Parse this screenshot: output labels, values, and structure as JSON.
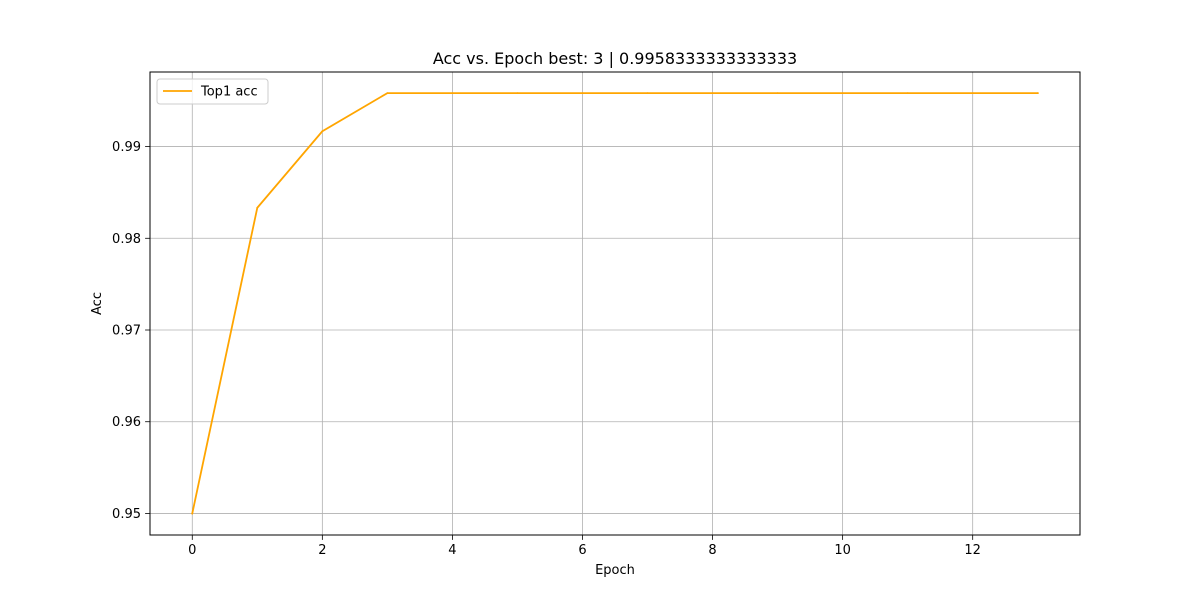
{
  "chart_data": {
    "type": "line",
    "title": "Acc vs. Epoch best: 3 | 0.9958333333333333",
    "xlabel": "Epoch",
    "ylabel": "Acc",
    "xlim": [
      -0.65,
      13.65
    ],
    "ylim": [
      0.94765,
      0.99813
    ],
    "xticks": [
      0,
      2,
      4,
      6,
      8,
      10,
      12
    ],
    "xtick_labels": [
      "0",
      "2",
      "4",
      "6",
      "8",
      "10",
      "12"
    ],
    "yticks": [
      0.95,
      0.96,
      0.97,
      0.98,
      0.99
    ],
    "ytick_labels": [
      "0.95",
      "0.96",
      "0.97",
      "0.98",
      "0.99"
    ],
    "grid": true,
    "legend_position": "top-left",
    "series": [
      {
        "name": "Top1 acc",
        "color": "#ffa500",
        "x": [
          0,
          1,
          2,
          3,
          4,
          5,
          6,
          7,
          8,
          9,
          10,
          11,
          12,
          13
        ],
        "y": [
          0.95,
          0.98333,
          0.99167,
          0.99583,
          0.99583,
          0.99583,
          0.99583,
          0.99583,
          0.99583,
          0.99583,
          0.99583,
          0.99583,
          0.99583,
          0.99583
        ]
      }
    ]
  }
}
